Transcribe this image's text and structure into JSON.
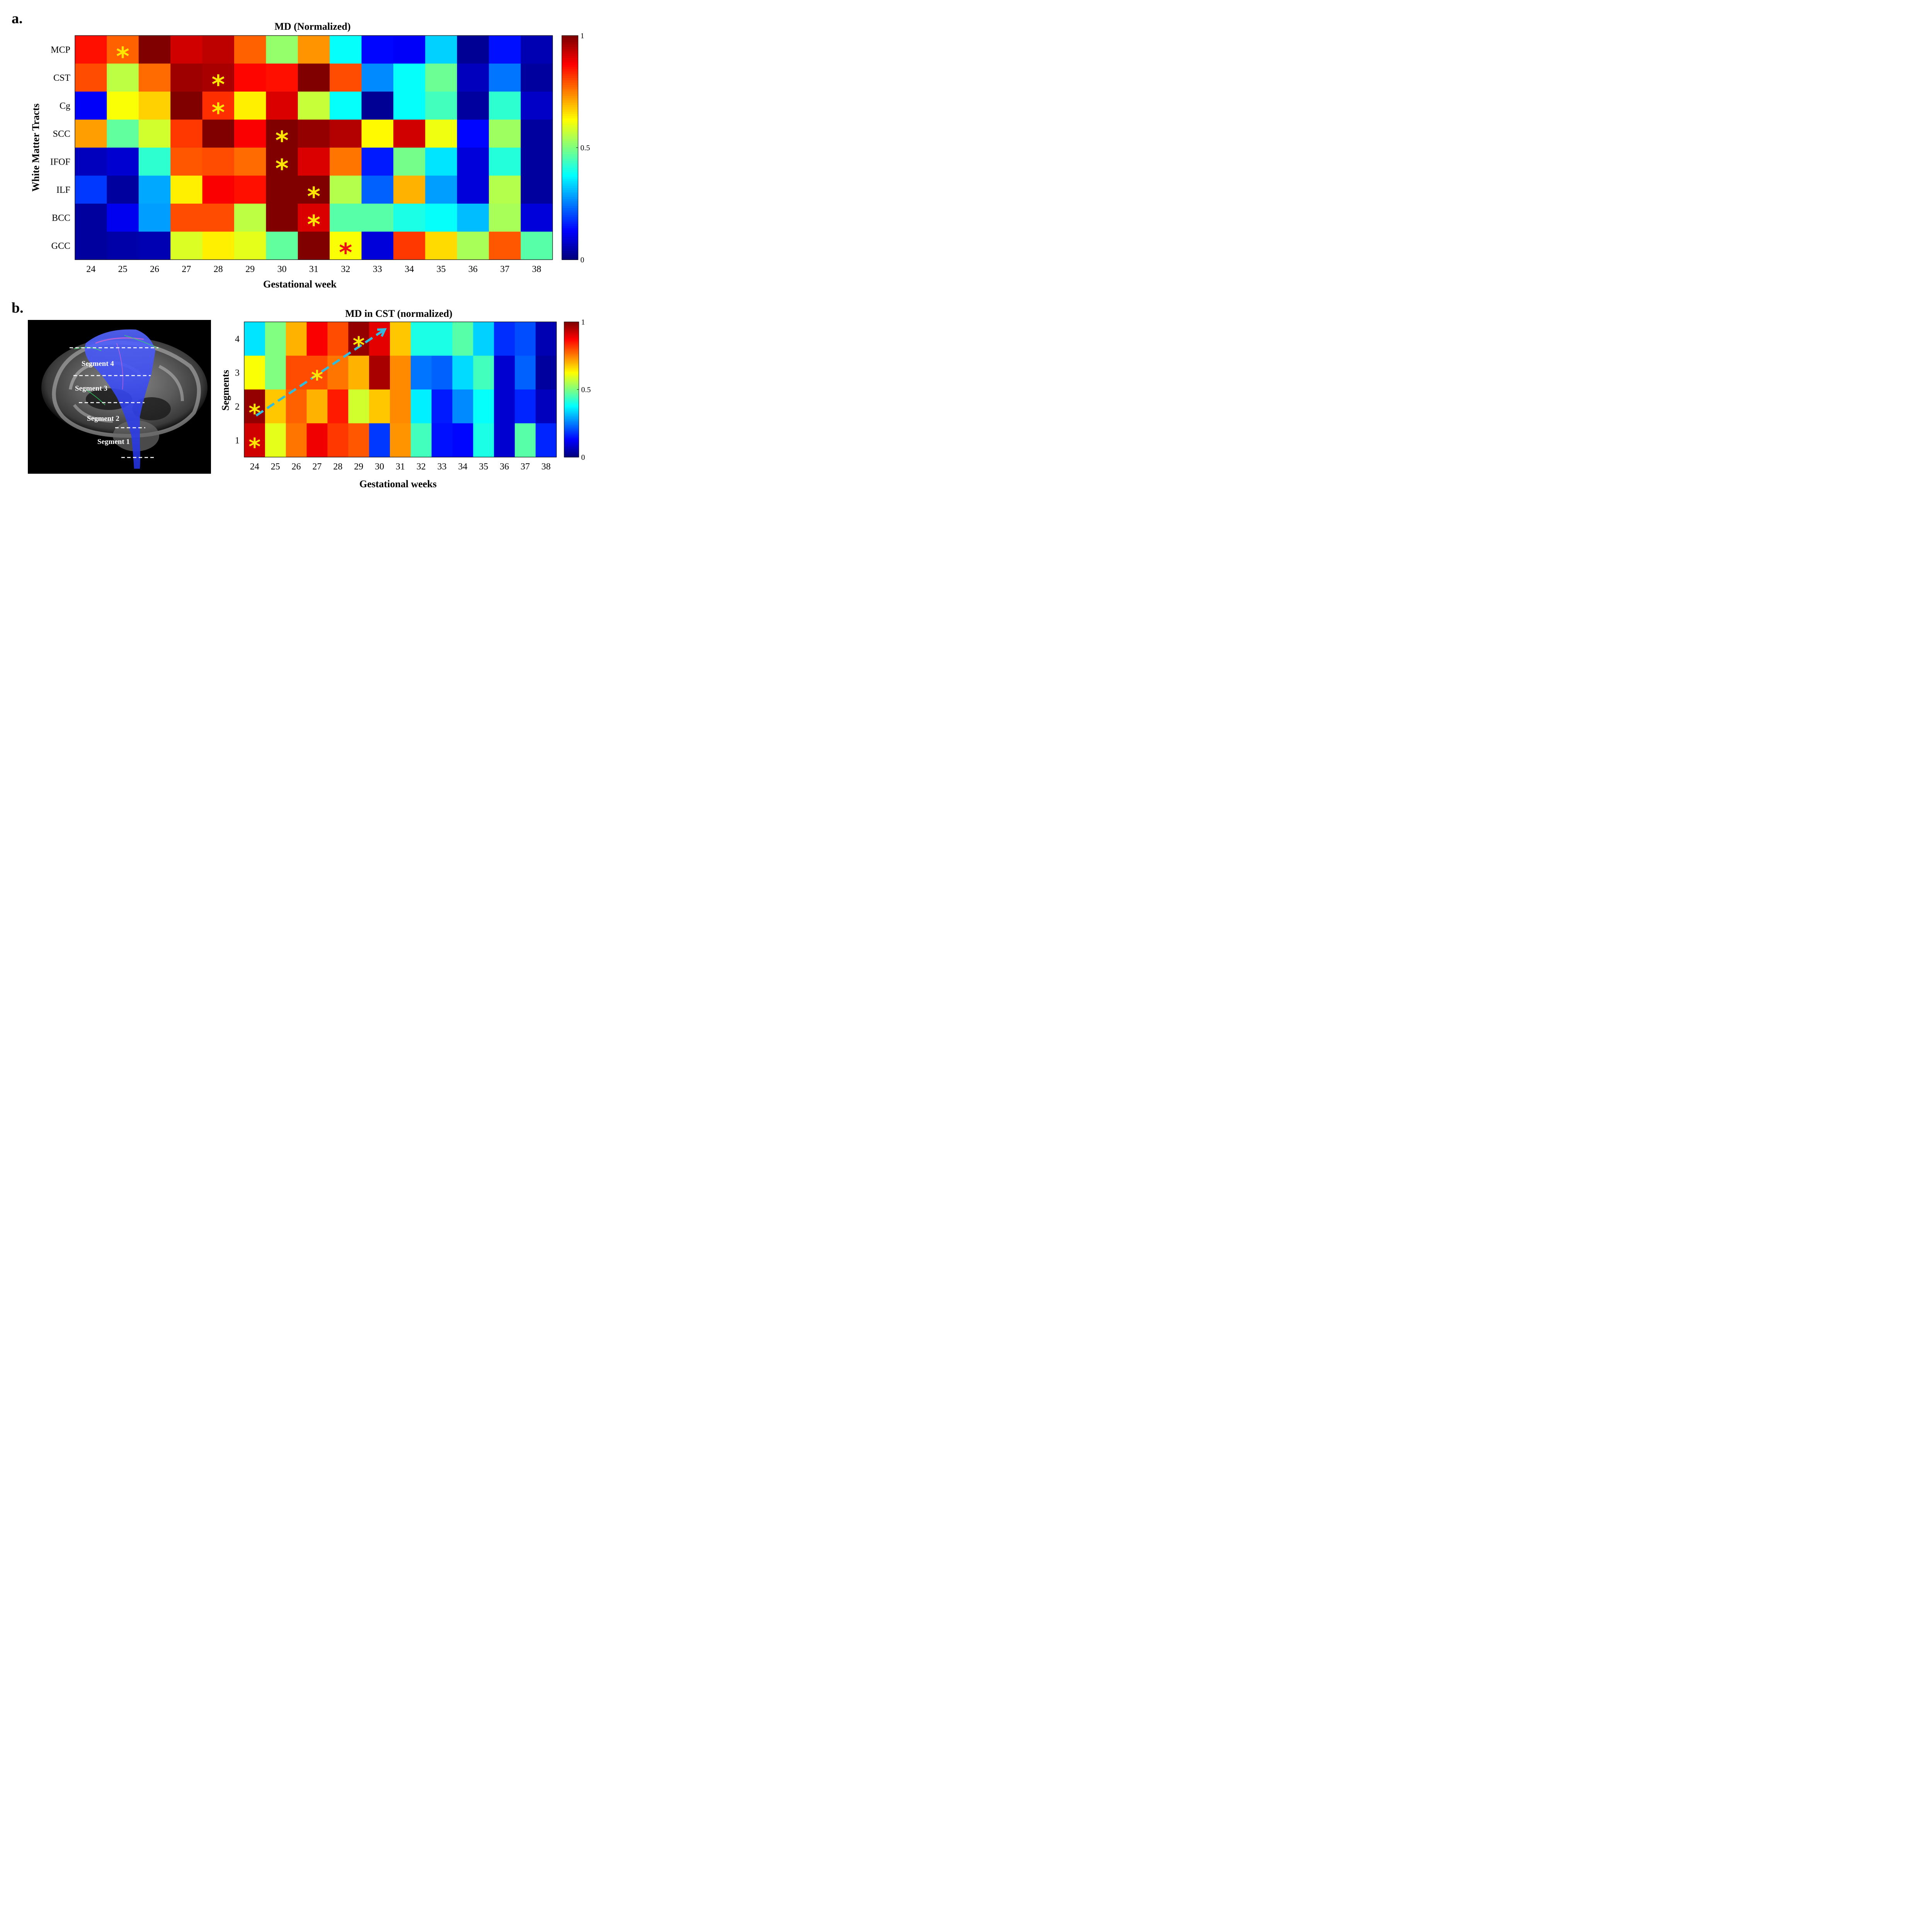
{
  "panel_a": {
    "letter": "a."
  },
  "panel_b": {
    "letter": "b.",
    "image_labels": [
      "Segment 4",
      "Segment 3",
      "Segment 2",
      "Segment 1"
    ]
  },
  "chart_data": [
    {
      "type": "heatmap",
      "title": "MD (Normalized)",
      "xlabel": "Gestational week",
      "ylabel": "White Matter Tracts",
      "x": [
        "24",
        "25",
        "26",
        "27",
        "28",
        "29",
        "30",
        "31",
        "32",
        "33",
        "34",
        "35",
        "36",
        "37",
        "38"
      ],
      "y": [
        "MCP",
        "CST",
        "Cg",
        "SCC",
        "IFOF",
        "ILF",
        "BCC",
        "GCC"
      ],
      "values": [
        [
          0.86,
          0.78,
          1.0,
          0.92,
          0.94,
          0.78,
          0.52,
          0.73,
          0.38,
          0.13,
          0.12,
          0.33,
          0.02,
          0.14,
          0.05
        ],
        [
          0.8,
          0.56,
          0.77,
          0.97,
          0.96,
          0.87,
          0.86,
          1.0,
          0.8,
          0.26,
          0.38,
          0.48,
          0.06,
          0.24,
          0.03
        ],
        [
          0.12,
          0.62,
          0.67,
          1.0,
          0.83,
          0.64,
          0.91,
          0.57,
          0.38,
          0.02,
          0.38,
          0.44,
          0.03,
          0.42,
          0.07
        ],
        [
          0.72,
          0.47,
          0.58,
          0.82,
          1.0,
          0.88,
          1.0,
          0.98,
          0.95,
          0.63,
          0.92,
          0.61,
          0.13,
          0.53,
          0.03
        ],
        [
          0.06,
          0.08,
          0.42,
          0.79,
          0.8,
          0.77,
          1.0,
          0.91,
          0.76,
          0.15,
          0.49,
          0.35,
          0.09,
          0.41,
          0.03
        ],
        [
          0.18,
          0.03,
          0.29,
          0.64,
          0.88,
          0.86,
          1.0,
          1.0,
          0.55,
          0.22,
          0.7,
          0.28,
          0.09,
          0.55,
          0.03
        ],
        [
          0.03,
          0.11,
          0.28,
          0.8,
          0.8,
          0.56,
          1.0,
          0.91,
          0.46,
          0.46,
          0.4,
          0.38,
          0.31,
          0.54,
          0.09
        ],
        [
          0.03,
          0.04,
          0.05,
          0.59,
          0.64,
          0.6,
          0.47,
          1.0,
          0.62,
          0.09,
          0.82,
          0.66,
          0.54,
          0.79,
          0.46
        ]
      ],
      "markers": [
        {
          "row": "MCP",
          "col": "25",
          "color": "#ffe600"
        },
        {
          "row": "CST",
          "col": "28",
          "color": "#ffe600"
        },
        {
          "row": "Cg",
          "col": "28",
          "color": "#ffe600"
        },
        {
          "row": "SCC",
          "col": "30",
          "color": "#ffe600"
        },
        {
          "row": "IFOF",
          "col": "30",
          "color": "#ffe600"
        },
        {
          "row": "ILF",
          "col": "31",
          "color": "#ffe600"
        },
        {
          "row": "BCC",
          "col": "31",
          "color": "#ffe600"
        },
        {
          "row": "GCC",
          "col": "32",
          "color": "#ee1111"
        }
      ],
      "colorbar": {
        "colormap": "jet",
        "range": [
          0,
          1
        ],
        "ticks": [
          "0",
          "0.5",
          "1"
        ]
      }
    },
    {
      "type": "heatmap",
      "title": "MD in CST (normalized)",
      "xlabel": "Gestational weeks",
      "ylabel": "Segments",
      "x": [
        "24",
        "25",
        "26",
        "27",
        "28",
        "29",
        "30",
        "31",
        "32",
        "33",
        "34",
        "35",
        "36",
        "37",
        "38"
      ],
      "y": [
        "4",
        "3",
        "2",
        "1"
      ],
      "values": [
        [
          0.35,
          0.5,
          0.7,
          0.88,
          0.8,
          0.98,
          0.9,
          0.68,
          0.4,
          0.4,
          0.46,
          0.33,
          0.17,
          0.2,
          0.05
        ],
        [
          0.62,
          0.5,
          0.8,
          0.8,
          0.76,
          0.7,
          0.96,
          0.74,
          0.24,
          0.22,
          0.34,
          0.44,
          0.08,
          0.22,
          0.03
        ],
        [
          0.98,
          0.68,
          0.78,
          0.7,
          0.85,
          0.58,
          0.68,
          0.74,
          0.36,
          0.15,
          0.26,
          0.38,
          0.08,
          0.16,
          0.06
        ],
        [
          0.92,
          0.6,
          0.76,
          0.89,
          0.82,
          0.79,
          0.18,
          0.73,
          0.44,
          0.14,
          0.13,
          0.4,
          0.08,
          0.46,
          0.16
        ]
      ],
      "markers": [
        {
          "row": "4",
          "col": "29",
          "color": "#ffe600"
        },
        {
          "row": "3",
          "col": "27",
          "color": "#ffe600"
        },
        {
          "row": "2",
          "col": "24",
          "color": "#ffe600"
        },
        {
          "row": "1",
          "col": "24",
          "color": "#ffe600"
        }
      ],
      "arrow": {
        "from": {
          "x": "24",
          "y": "1.5"
        },
        "to": {
          "x": "30",
          "y": "4.3"
        },
        "color": "#33bbdd"
      },
      "colorbar": {
        "colormap": "jet",
        "range": [
          0,
          1
        ],
        "ticks": [
          "0",
          "0.5",
          "1"
        ]
      }
    }
  ]
}
